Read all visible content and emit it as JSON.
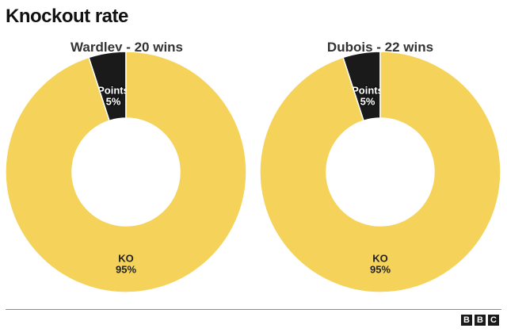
{
  "title": "Knockout rate",
  "logo": [
    "B",
    "B",
    "C"
  ],
  "colors": {
    "ko": "#F5D35B",
    "points": "#1A1A1A",
    "background": "#FFFFFF"
  },
  "chart_data": [
    {
      "type": "pie",
      "title": "Wardley - 20 wins",
      "slices": [
        {
          "label": "Points",
          "value": 5,
          "display": "5%"
        },
        {
          "label": "KO",
          "value": 95,
          "display": "95%"
        }
      ]
    },
    {
      "type": "pie",
      "title": "Dubois - 22 wins",
      "slices": [
        {
          "label": "Points",
          "value": 5,
          "display": "5%"
        },
        {
          "label": "KO",
          "value": 95,
          "display": "95%"
        }
      ]
    }
  ]
}
